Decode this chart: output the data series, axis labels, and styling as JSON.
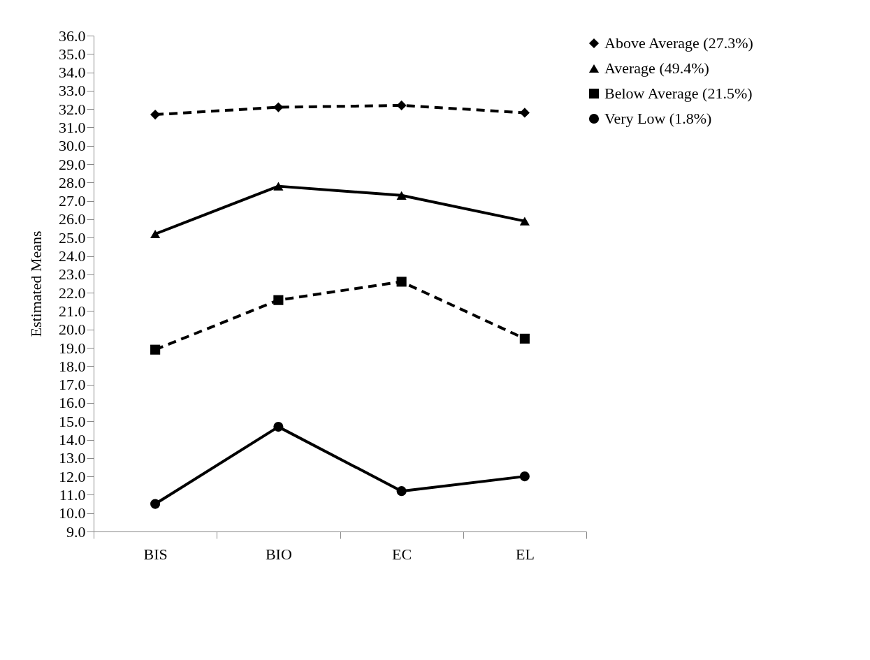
{
  "chart_data": {
    "type": "line",
    "ylabel": "Estimated Means",
    "categories": [
      "BIS",
      "BIO",
      "EC",
      "EL"
    ],
    "ylim": [
      9,
      36
    ],
    "yticks": [
      {
        "value": 9,
        "label": "9.0"
      },
      {
        "value": 10,
        "label": "10.0"
      },
      {
        "value": 11,
        "label": "11.0"
      },
      {
        "value": 12,
        "label": "12.0"
      },
      {
        "value": 13,
        "label": "13.0"
      },
      {
        "value": 14,
        "label": "14.0"
      },
      {
        "value": 15,
        "label": "15.0"
      },
      {
        "value": 16,
        "label": "16.0"
      },
      {
        "value": 17,
        "label": "17.0"
      },
      {
        "value": 18,
        "label": "18.0"
      },
      {
        "value": 19,
        "label": "19.0"
      },
      {
        "value": 20,
        "label": "20.0"
      },
      {
        "value": 21,
        "label": "21.0"
      },
      {
        "value": 22,
        "label": "22.0"
      },
      {
        "value": 23,
        "label": "23.0"
      },
      {
        "value": 24,
        "label": "24.0"
      },
      {
        "value": 25,
        "label": "25.0"
      },
      {
        "value": 26,
        "label": "26.0"
      },
      {
        "value": 27,
        "label": "27.0"
      },
      {
        "value": 28,
        "label": "28.0"
      },
      {
        "value": 29,
        "label": "29.0"
      },
      {
        "value": 30,
        "label": "30.0"
      },
      {
        "value": 31,
        "label": "31.0"
      },
      {
        "value": 32,
        "label": "32.0"
      },
      {
        "value": 33,
        "label": "33.0"
      },
      {
        "value": 34,
        "label": "34.0"
      },
      {
        "value": 35,
        "label": "35.0"
      },
      {
        "value": 36,
        "label": "36.0"
      }
    ],
    "grid": false,
    "legend": "top right",
    "series": [
      {
        "name": "Above Average (27.3%)",
        "color": "#000000",
        "marker": "diamond",
        "line_style": "dashed",
        "values": [
          31.7,
          32.1,
          32.2,
          31.8
        ]
      },
      {
        "name": "Average (49.4%)",
        "color": "#000000",
        "marker": "triangle",
        "line_style": "solid",
        "values": [
          25.2,
          27.8,
          27.3,
          25.9
        ]
      },
      {
        "name": "Below Average (21.5%)",
        "color": "#000000",
        "marker": "square",
        "line_style": "dashed",
        "values": [
          18.9,
          21.6,
          22.6,
          19.5
        ]
      },
      {
        "name": "Very Low (1.8%)",
        "color": "#000000",
        "marker": "circle",
        "line_style": "solid",
        "values": [
          10.5,
          14.7,
          11.2,
          12.0
        ]
      }
    ]
  }
}
